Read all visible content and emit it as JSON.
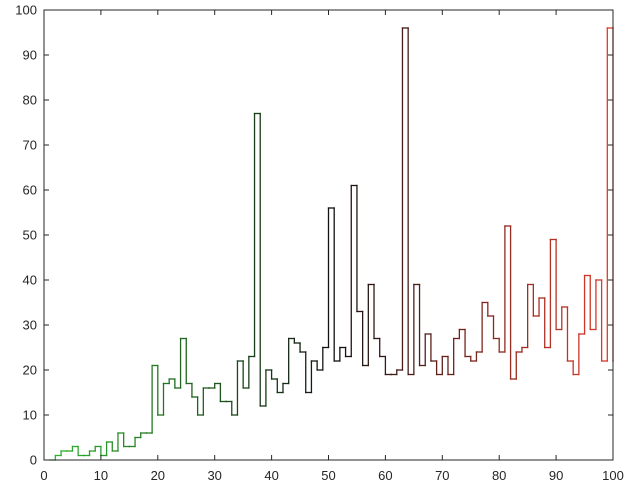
{
  "chart_data": {
    "type": "line",
    "style": "stairs",
    "title": "",
    "xlabel": "",
    "ylabel": "",
    "xlim": [
      0,
      100
    ],
    "ylim": [
      0,
      100
    ],
    "xticks": [
      0,
      10,
      20,
      30,
      40,
      50,
      60,
      70,
      80,
      90,
      100
    ],
    "yticks": [
      0,
      10,
      20,
      30,
      40,
      50,
      60,
      70,
      80,
      90,
      100
    ],
    "grid": false,
    "legend": "none",
    "color_gradient": {
      "start": "#2fb52f",
      "middle": "#111111",
      "end": "#e03b2a"
    },
    "series": [
      {
        "x": [
          1,
          2,
          3,
          4,
          5,
          6,
          7,
          8,
          9,
          10,
          11,
          12,
          13,
          14,
          15,
          16,
          17,
          18,
          19,
          20,
          21,
          22,
          23,
          24,
          25,
          26,
          27,
          28,
          29,
          30,
          31,
          32,
          33,
          34,
          35,
          36,
          37,
          38,
          39,
          40,
          41,
          42,
          43,
          44,
          45,
          46,
          47,
          48,
          49,
          50,
          51,
          52,
          53,
          54,
          55,
          56,
          57,
          58,
          59,
          60,
          61,
          62,
          63,
          64,
          65,
          66,
          67,
          68,
          69,
          70,
          71,
          72,
          73,
          74,
          75,
          76,
          77,
          78,
          79,
          80,
          81,
          82,
          83,
          84,
          85,
          86,
          87,
          88,
          89,
          90,
          91,
          92,
          93,
          94,
          95,
          96,
          97,
          98,
          99,
          100
        ],
        "values": [
          0,
          1,
          2,
          2,
          3,
          1,
          1,
          2,
          3,
          1,
          4,
          2,
          6,
          3,
          3,
          5,
          6,
          6,
          21,
          10,
          17,
          18,
          16,
          27,
          17,
          14,
          10,
          16,
          16,
          17,
          13,
          13,
          10,
          22,
          16,
          23,
          77,
          12,
          20,
          18,
          15,
          17,
          27,
          26,
          24,
          15,
          22,
          20,
          25,
          56,
          22,
          25,
          23,
          61,
          33,
          21,
          39,
          27,
          23,
          19,
          19,
          20,
          96,
          19,
          39,
          21,
          28,
          22,
          19,
          23,
          19,
          27,
          29,
          23,
          22,
          24,
          35,
          32,
          27,
          24,
          52,
          18,
          24,
          25,
          39,
          32,
          36,
          25,
          49,
          29,
          34,
          22,
          19,
          28,
          41,
          29,
          40,
          22,
          96,
          22
        ]
      }
    ]
  }
}
